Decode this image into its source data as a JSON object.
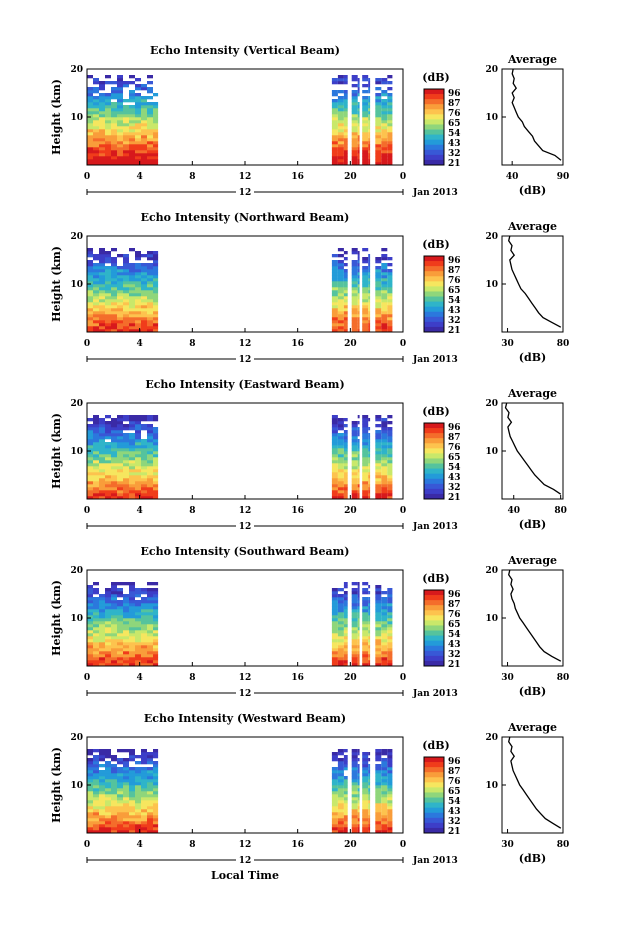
{
  "figure": {
    "xlabel_bottom": "Local Time",
    "date_label": "Jan 2013",
    "colorbar_unit": "(dB)",
    "colorbar_ticks": [
      "96",
      "87",
      "76",
      "65",
      "54",
      "43",
      "32",
      "21"
    ],
    "colorbar_colors": [
      "#d7191c",
      "#f03c1b",
      "#f46d2b",
      "#f99d3a",
      "#fdc34e",
      "#f6e65f",
      "#c9e86a",
      "#8fd67b",
      "#55c39d",
      "#2fb4c9",
      "#239bd9",
      "#2b78dd",
      "#3858d6",
      "#3d3ec8",
      "#3a2aa6"
    ]
  },
  "chart_data": [
    {
      "type": "heatmap",
      "title": "Echo Intensity (Vertical Beam)",
      "ylabel": "Height (km)",
      "yticks": [
        "20",
        "10"
      ],
      "xticks": [
        "0",
        "4",
        "8",
        "12",
        "16",
        "20",
        "0"
      ],
      "xsub": "12",
      "ylim": [
        0,
        20
      ],
      "xlim": [
        0,
        24
      ],
      "data_windows_hours": [
        [
          0,
          5.4
        ],
        [
          18.6,
          19.8
        ],
        [
          20.1,
          20.7
        ],
        [
          20.9,
          21.5
        ],
        [
          21.9,
          23.2
        ]
      ],
      "profile": {
        "title": "Average",
        "xlabel": "(dB)",
        "xticks": [
          "40",
          "90"
        ],
        "xlim": [
          30,
          90
        ],
        "yticks": [
          "20",
          "10"
        ],
        "heights": [
          1,
          2,
          3,
          4,
          5,
          6,
          7,
          8,
          9,
          10,
          11,
          12,
          13,
          14,
          15,
          16,
          17,
          18,
          19,
          20
        ],
        "values": [
          88,
          82,
          70,
          66,
          62,
          60,
          56,
          52,
          50,
          46,
          44,
          42,
          40,
          42,
          40,
          44,
          41,
          42,
          40,
          41
        ]
      }
    },
    {
      "type": "heatmap",
      "title": "Echo Intensity (Northward Beam)",
      "ylabel": "Height (km)",
      "yticks": [
        "20",
        "10"
      ],
      "xticks": [
        "0",
        "4",
        "8",
        "12",
        "16",
        "20",
        "0"
      ],
      "xsub": "12",
      "ylim": [
        0,
        20
      ],
      "xlim": [
        0,
        24
      ],
      "data_windows_hours": [
        [
          0,
          5.4
        ],
        [
          18.6,
          19.8
        ],
        [
          20.1,
          20.7
        ],
        [
          20.9,
          21.5
        ],
        [
          21.9,
          23.2
        ]
      ],
      "profile": {
        "title": "Average",
        "xlabel": "(dB)",
        "xticks": [
          "30",
          "80"
        ],
        "xlim": [
          25,
          80
        ],
        "yticks": [
          "20",
          "10"
        ],
        "heights": [
          1,
          2,
          3,
          4,
          5,
          6,
          7,
          8,
          9,
          10,
          11,
          12,
          13,
          14,
          15,
          16,
          17,
          18,
          19,
          20
        ],
        "values": [
          78,
          70,
          62,
          58,
          55,
          52,
          49,
          46,
          42,
          40,
          38,
          36,
          34,
          33,
          32,
          36,
          33,
          34,
          31,
          32
        ]
      }
    },
    {
      "type": "heatmap",
      "title": "Echo Intensity (Eastward Beam)",
      "ylabel": "Height (km)",
      "yticks": [
        "20",
        "10"
      ],
      "xticks": [
        "0",
        "4",
        "8",
        "12",
        "16",
        "20",
        "0"
      ],
      "xsub": "12",
      "ylim": [
        0,
        20
      ],
      "xlim": [
        0,
        24
      ],
      "data_windows_hours": [
        [
          0,
          5.4
        ],
        [
          18.6,
          19.8
        ],
        [
          20.1,
          20.7
        ],
        [
          20.9,
          21.5
        ],
        [
          21.9,
          23.2
        ]
      ],
      "profile": {
        "title": "Average",
        "xlabel": "(dB)",
        "xticks": [
          "40",
          "80"
        ],
        "xlim": [
          30,
          82
        ],
        "yticks": [
          "20",
          "10"
        ],
        "heights": [
          1,
          2,
          3,
          4,
          5,
          6,
          7,
          8,
          9,
          10,
          11,
          12,
          13,
          14,
          15,
          16,
          17,
          18,
          19,
          20
        ],
        "values": [
          80,
          74,
          66,
          62,
          58,
          55,
          52,
          49,
          46,
          43,
          41,
          39,
          37,
          36,
          35,
          38,
          35,
          36,
          33,
          34
        ]
      }
    },
    {
      "type": "heatmap",
      "title": "Echo Intensity (Southward Beam)",
      "ylabel": "Height (km)",
      "yticks": [
        "20",
        "10"
      ],
      "xticks": [
        "0",
        "4",
        "8",
        "12",
        "16",
        "20",
        "0"
      ],
      "xsub": "12",
      "ylim": [
        0,
        20
      ],
      "xlim": [
        0,
        24
      ],
      "data_windows_hours": [
        [
          0,
          5.4
        ],
        [
          18.6,
          19.8
        ],
        [
          20.1,
          20.7
        ],
        [
          20.9,
          21.5
        ],
        [
          21.9,
          23.2
        ]
      ],
      "profile": {
        "title": "Average",
        "xlabel": "(dB)",
        "xticks": [
          "30",
          "80"
        ],
        "xlim": [
          25,
          80
        ],
        "yticks": [
          "20",
          "10"
        ],
        "heights": [
          1,
          2,
          3,
          4,
          5,
          6,
          7,
          8,
          9,
          10,
          11,
          12,
          13,
          14,
          15,
          16,
          17,
          18,
          19,
          20
        ],
        "values": [
          78,
          70,
          63,
          59,
          56,
          53,
          50,
          47,
          44,
          41,
          39,
          37,
          36,
          34,
          33,
          35,
          33,
          34,
          31,
          32
        ]
      }
    },
    {
      "type": "heatmap",
      "title": "Echo Intensity (Westward Beam)",
      "ylabel": "Height (km)",
      "yticks": [
        "20",
        "10"
      ],
      "xticks": [
        "0",
        "4",
        "8",
        "12",
        "16",
        "20",
        "0"
      ],
      "xsub": "12",
      "ylim": [
        0,
        20
      ],
      "xlim": [
        0,
        24
      ],
      "data_windows_hours": [
        [
          0,
          5.4
        ],
        [
          18.6,
          19.8
        ],
        [
          20.1,
          20.7
        ],
        [
          20.9,
          21.5
        ],
        [
          21.9,
          23.2
        ]
      ],
      "profile": {
        "title": "Average",
        "xlabel": "(dB)",
        "xticks": [
          "30",
          "80"
        ],
        "xlim": [
          25,
          80
        ],
        "yticks": [
          "20",
          "10"
        ],
        "heights": [
          1,
          2,
          3,
          4,
          5,
          6,
          7,
          8,
          9,
          10,
          11,
          12,
          13,
          14,
          15,
          16,
          17,
          18,
          19,
          20
        ],
        "values": [
          78,
          71,
          64,
          60,
          56,
          53,
          50,
          47,
          44,
          41,
          39,
          37,
          35,
          34,
          33,
          36,
          33,
          34,
          31,
          32
        ]
      }
    }
  ]
}
